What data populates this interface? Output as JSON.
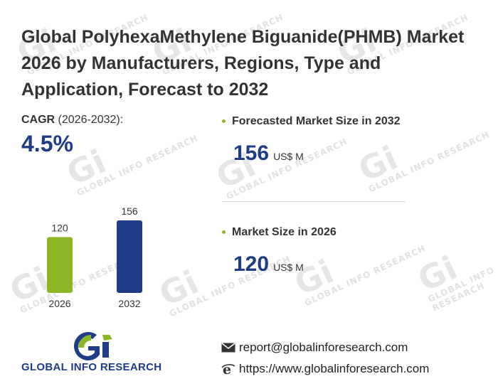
{
  "header": {
    "title": "Global PolyhexaMethylene Biguanide(PHMB) Market 2026 by Manufacturers, Regions, Type and Application, Forecast to 2032"
  },
  "cagr": {
    "label_bold": "CAGR",
    "label_rest": " (2026-2032):",
    "value": "4.5%"
  },
  "forecast": {
    "label": "Forecasted Market Size in 2032",
    "value": "156",
    "unit": "US$ M"
  },
  "current": {
    "label": "Market Size in 2026",
    "value": "120",
    "unit": "US$ M"
  },
  "logo": {
    "text": "GLOBAL INFO RESEARCH",
    "watermark": "GLOBAL INFO RESEARCH"
  },
  "contact": {
    "email": "report@globalinforesearch.com",
    "website": "https://www.globalinforesearch.com"
  },
  "colors": {
    "accent_green": "#8db626",
    "accent_navy": "#1f3c88"
  },
  "chart_data": {
    "type": "bar",
    "categories": [
      "2026",
      "2032"
    ],
    "values": [
      120,
      156
    ],
    "data_labels": [
      "120",
      "156"
    ],
    "colors": [
      "#8db626",
      "#1f3c88"
    ],
    "ylim": [
      0,
      156
    ],
    "grid": false
  }
}
